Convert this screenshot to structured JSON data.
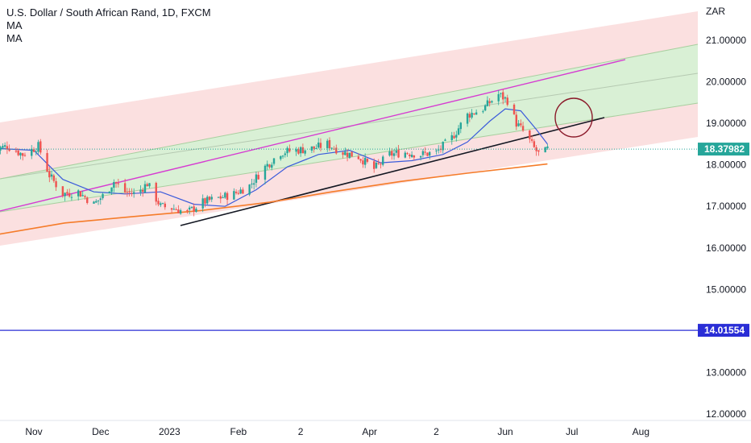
{
  "chart_data": {
    "type": "candlestick",
    "title": "U.S. Dollar / South African Rand, 1D, FXCM",
    "indicators": [
      "MA",
      "MA"
    ],
    "currency": "ZAR",
    "y_ticks": [
      "21.00000",
      "20.00000",
      "19.00000",
      "18.00000",
      "17.00000",
      "16.00000",
      "15.00000",
      "13.00000",
      "12.00000"
    ],
    "y_tick_values": [
      21,
      20,
      19,
      18,
      17,
      16,
      15,
      13,
      12
    ],
    "ylim": [
      11.8,
      21.6
    ],
    "x_ticks": [
      "Nov",
      "Dec",
      "2023",
      "Feb",
      "2",
      "Apr",
      "2",
      "Jun",
      "Jul",
      "Aug"
    ],
    "x_tick_dates": [
      "2022-11-01",
      "2022-12-01",
      "2023-01-01",
      "2023-02-01",
      "2023-03-01",
      "2023-04-01",
      "2023-05-01",
      "2023-06-01",
      "2023-07-01",
      "2023-08-01"
    ],
    "current_price": {
      "label": "18.37982",
      "value": 18.37982,
      "color": "#26a69a"
    },
    "horizontal_line": {
      "label": "14.01554",
      "value": 14.01554,
      "color": "#2a2ed6"
    },
    "price_path": [
      [
        "2022-10-13",
        18.35
      ],
      [
        "2022-10-20",
        18.45
      ],
      [
        "2022-10-27",
        18.25
      ],
      [
        "2022-11-03",
        18.45
      ],
      [
        "2022-11-08",
        17.75
      ],
      [
        "2022-11-14",
        17.3
      ],
      [
        "2022-11-21",
        17.35
      ],
      [
        "2022-11-28",
        17.05
      ],
      [
        "2022-12-03",
        17.3
      ],
      [
        "2022-12-07",
        17.6
      ],
      [
        "2022-12-12",
        17.35
      ],
      [
        "2022-12-17",
        17.3
      ],
      [
        "2022-12-22",
        17.55
      ],
      [
        "2022-12-28",
        17.0
      ],
      [
        "2023-01-03",
        16.95
      ],
      [
        "2023-01-09",
        16.85
      ],
      [
        "2023-01-16",
        17.1
      ],
      [
        "2023-01-23",
        17.2
      ],
      [
        "2023-01-30",
        17.3
      ],
      [
        "2023-02-06",
        17.5
      ],
      [
        "2023-02-13",
        17.95
      ],
      [
        "2023-02-20",
        18.3
      ],
      [
        "2023-02-27",
        18.35
      ],
      [
        "2023-03-07",
        18.4
      ],
      [
        "2023-03-13",
        18.5
      ],
      [
        "2023-03-20",
        18.3
      ],
      [
        "2023-03-27",
        18.2
      ],
      [
        "2023-04-03",
        17.9
      ],
      [
        "2023-04-10",
        18.25
      ],
      [
        "2023-04-17",
        18.3
      ],
      [
        "2023-04-24",
        18.25
      ],
      [
        "2023-05-01",
        18.3
      ],
      [
        "2023-05-08",
        18.65
      ],
      [
        "2023-05-15",
        19.2
      ],
      [
        "2023-05-22",
        19.35
      ],
      [
        "2023-05-29",
        19.7
      ],
      [
        "2023-06-02",
        19.55
      ],
      [
        "2023-06-06",
        19.0
      ],
      [
        "2023-06-10",
        18.75
      ],
      [
        "2023-06-14",
        18.4
      ],
      [
        "2023-06-17",
        18.2
      ],
      [
        "2023-06-20",
        18.38
      ]
    ],
    "ma_fast": [
      [
        "2022-10-13",
        18.4
      ],
      [
        "2022-11-01",
        18.35
      ],
      [
        "2022-11-14",
        17.65
      ],
      [
        "2022-11-28",
        17.35
      ],
      [
        "2022-12-12",
        17.3
      ],
      [
        "2022-12-28",
        17.35
      ],
      [
        "2023-01-12",
        17.05
      ],
      [
        "2023-01-26",
        17.0
      ],
      [
        "2023-02-09",
        17.4
      ],
      [
        "2023-02-23",
        17.95
      ],
      [
        "2023-03-09",
        18.25
      ],
      [
        "2023-03-23",
        18.35
      ],
      [
        "2023-04-06",
        18.05
      ],
      [
        "2023-04-20",
        18.1
      ],
      [
        "2023-05-04",
        18.25
      ],
      [
        "2023-05-15",
        18.55
      ],
      [
        "2023-05-25",
        19.05
      ],
      [
        "2023-06-01",
        19.35
      ],
      [
        "2023-06-08",
        19.3
      ],
      [
        "2023-06-15",
        18.85
      ],
      [
        "2023-06-20",
        18.5
      ]
    ],
    "ma_slow": [
      [
        "2022-10-13",
        16.3
      ],
      [
        "2022-11-15",
        16.6
      ],
      [
        "2022-12-15",
        16.75
      ],
      [
        "2023-01-15",
        16.9
      ],
      [
        "2023-02-15",
        17.1
      ],
      [
        "2023-03-15",
        17.35
      ],
      [
        "2023-04-15",
        17.6
      ],
      [
        "2023-05-15",
        17.8
      ],
      [
        "2023-06-20",
        18.02
      ]
    ]
  }
}
